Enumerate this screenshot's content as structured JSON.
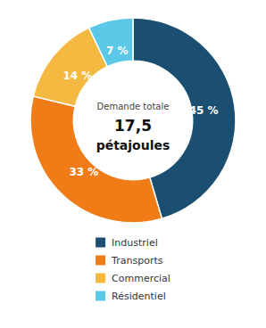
{
  "chart_data": {
    "type": "donut",
    "categories": [
      "Industriel",
      "Transports",
      "Commercial",
      "Résidentiel"
    ],
    "values": [
      45,
      33,
      14,
      7
    ],
    "value_labels": [
      "45 %",
      "33 %",
      "14 %",
      "7 %"
    ],
    "colors": [
      "#1a4f72",
      "#f07c18",
      "#f5b942",
      "#5bc8e8"
    ],
    "annotations": [
      "Demande totale",
      "17,5",
      "pétajoules"
    ],
    "data_labels": true,
    "legend": "bottom"
  }
}
